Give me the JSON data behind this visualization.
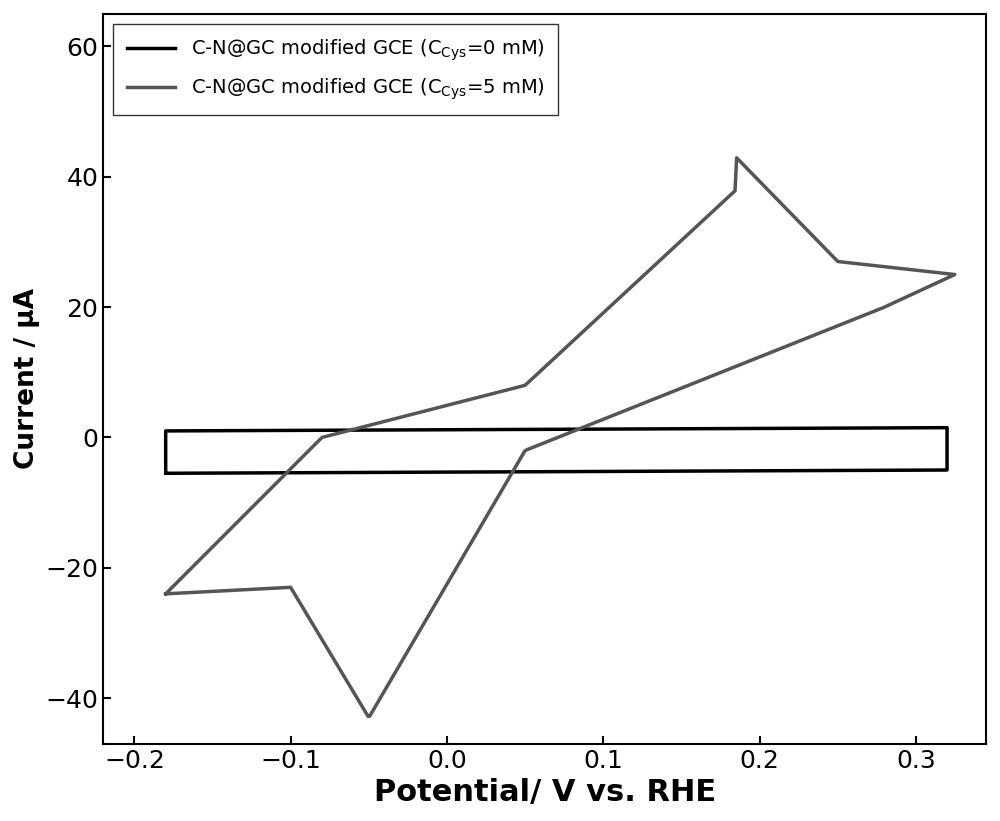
{
  "title": "",
  "xlabel": "Potential/ V vs. RHE",
  "ylabel": "Current / μA",
  "xlim": [
    -0.22,
    0.345
  ],
  "ylim": [
    -47,
    65
  ],
  "xticks": [
    -0.2,
    -0.1,
    0.0,
    0.1,
    0.2,
    0.3
  ],
  "yticks": [
    -40,
    -20,
    0,
    20,
    40,
    60
  ],
  "legend1_label": "C-N@GC modified GCE (C",
  "legend1_sub": "Cys",
  "legend1_suffix": "=0 mM)",
  "legend2_label": "C-N@GC modified GCE (C",
  "legend2_sub": "Cys",
  "legend2_suffix": "=5 mM)",
  "line1_color": "#000000",
  "line2_color": "#555555",
  "linewidth": 2.5,
  "background_color": "#ffffff",
  "xlabel_fontsize": 22,
  "ylabel_fontsize": 19,
  "tick_fontsize": 18,
  "legend_fontsize": 14
}
